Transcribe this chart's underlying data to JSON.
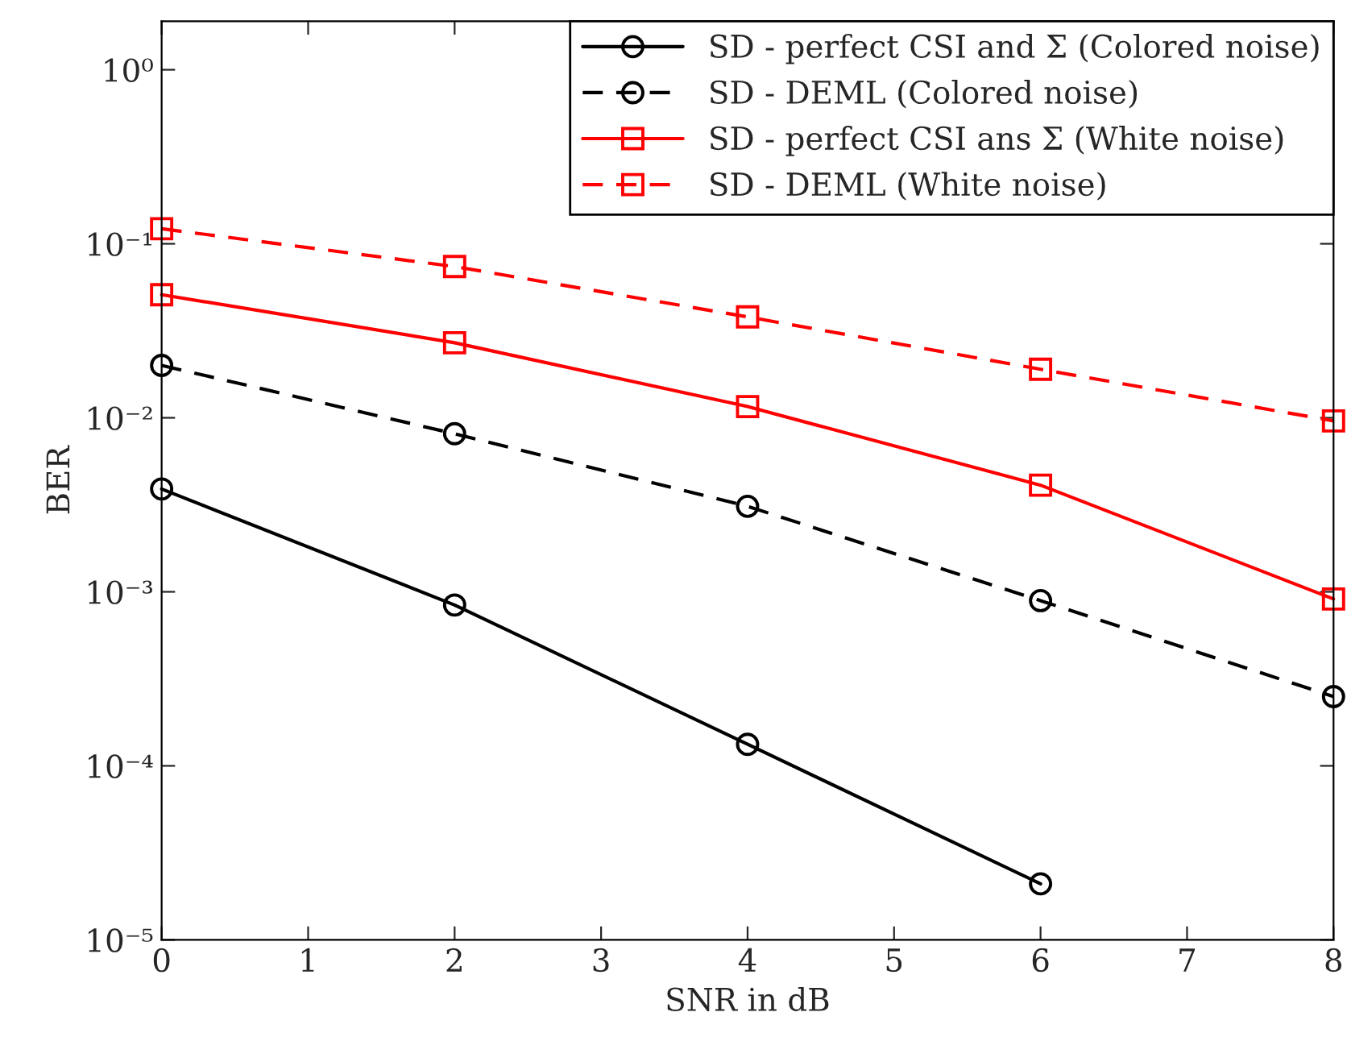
{
  "chart_data": {
    "type": "line",
    "xlabel": "SNR in dB",
    "ylabel": "BER",
    "log": "y",
    "x": [
      0,
      2,
      4,
      6,
      8
    ],
    "series": [
      {
        "name": "SD - perfect CSI and Σ (Colored noise)",
        "color": "#000000",
        "marker": "circle",
        "line_style": "solid",
        "values": [
          0.0039,
          0.00084,
          0.000133,
          2.1e-05,
          null
        ]
      },
      {
        "name": "SD - DEML (Colored noise)",
        "color": "#000000",
        "marker": "circle",
        "line_style": "dashed",
        "values": [
          0.02,
          0.0081,
          0.0031,
          0.00089,
          0.00025
        ]
      },
      {
        "name": "SD - perfect CSI ans Σ (White noise)",
        "color": "#ff0000",
        "marker": "square",
        "line_style": "solid",
        "values": [
          0.051,
          0.027,
          0.0116,
          0.0041,
          0.00091
        ]
      },
      {
        "name": "SD - DEML (White noise)",
        "color": "#ff0000",
        "marker": "square",
        "line_style": "dashed",
        "values": [
          0.122,
          0.074,
          0.038,
          0.019,
          0.0096
        ]
      }
    ],
    "xlim": [
      0,
      8
    ],
    "xticks": [
      0,
      1,
      2,
      3,
      4,
      5,
      6,
      7,
      8
    ],
    "ylim": [
      1e-05,
      1.9
    ],
    "yticks": [
      {
        "value": 1e-05,
        "label": "10⁻⁵"
      },
      {
        "value": 0.0001,
        "label": "10⁻⁴"
      },
      {
        "value": 0.001,
        "label": "10⁻³"
      },
      {
        "value": 0.01,
        "label": "10⁻²"
      },
      {
        "value": 0.1,
        "label": "10⁻¹"
      },
      {
        "value": 1,
        "label": "10⁰"
      }
    ],
    "grid": false,
    "legend": "top right"
  }
}
